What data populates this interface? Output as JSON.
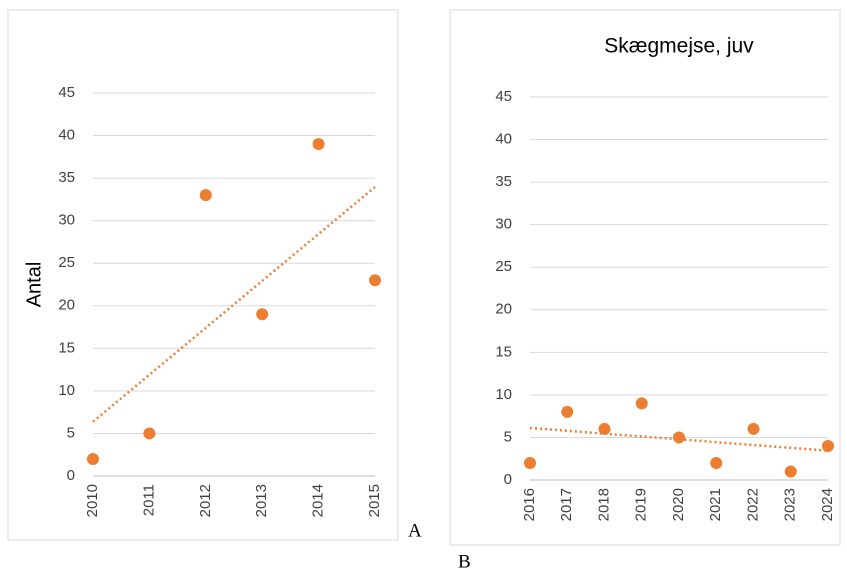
{
  "chart_data": [
    {
      "type": "scatter",
      "y_label": "Antal",
      "panel_label": "A",
      "categories": [
        "2010",
        "2011",
        "2012",
        "2013",
        "2014",
        "2015"
      ],
      "values": [
        2,
        5,
        33,
        19,
        39,
        23
      ],
      "color": "#ed7d31",
      "trendline": "linear",
      "ylim": [
        0,
        45
      ],
      "yticks": [
        0,
        5,
        10,
        15,
        20,
        25,
        30,
        35,
        40,
        45
      ],
      "grid": true
    },
    {
      "type": "scatter",
      "title": "Skægmejse, juv",
      "panel_label": "B",
      "categories": [
        "2016",
        "2017",
        "2018",
        "2019",
        "2020",
        "2021",
        "2022",
        "2023",
        "2024"
      ],
      "values": [
        2,
        8,
        6,
        9,
        5,
        2,
        6,
        1,
        4
      ],
      "color": "#ed7d31",
      "trendline": "linear",
      "ylim": [
        0,
        45
      ],
      "yticks": [
        0,
        5,
        10,
        15,
        20,
        25,
        30,
        35,
        40,
        45
      ],
      "grid": true
    }
  ]
}
